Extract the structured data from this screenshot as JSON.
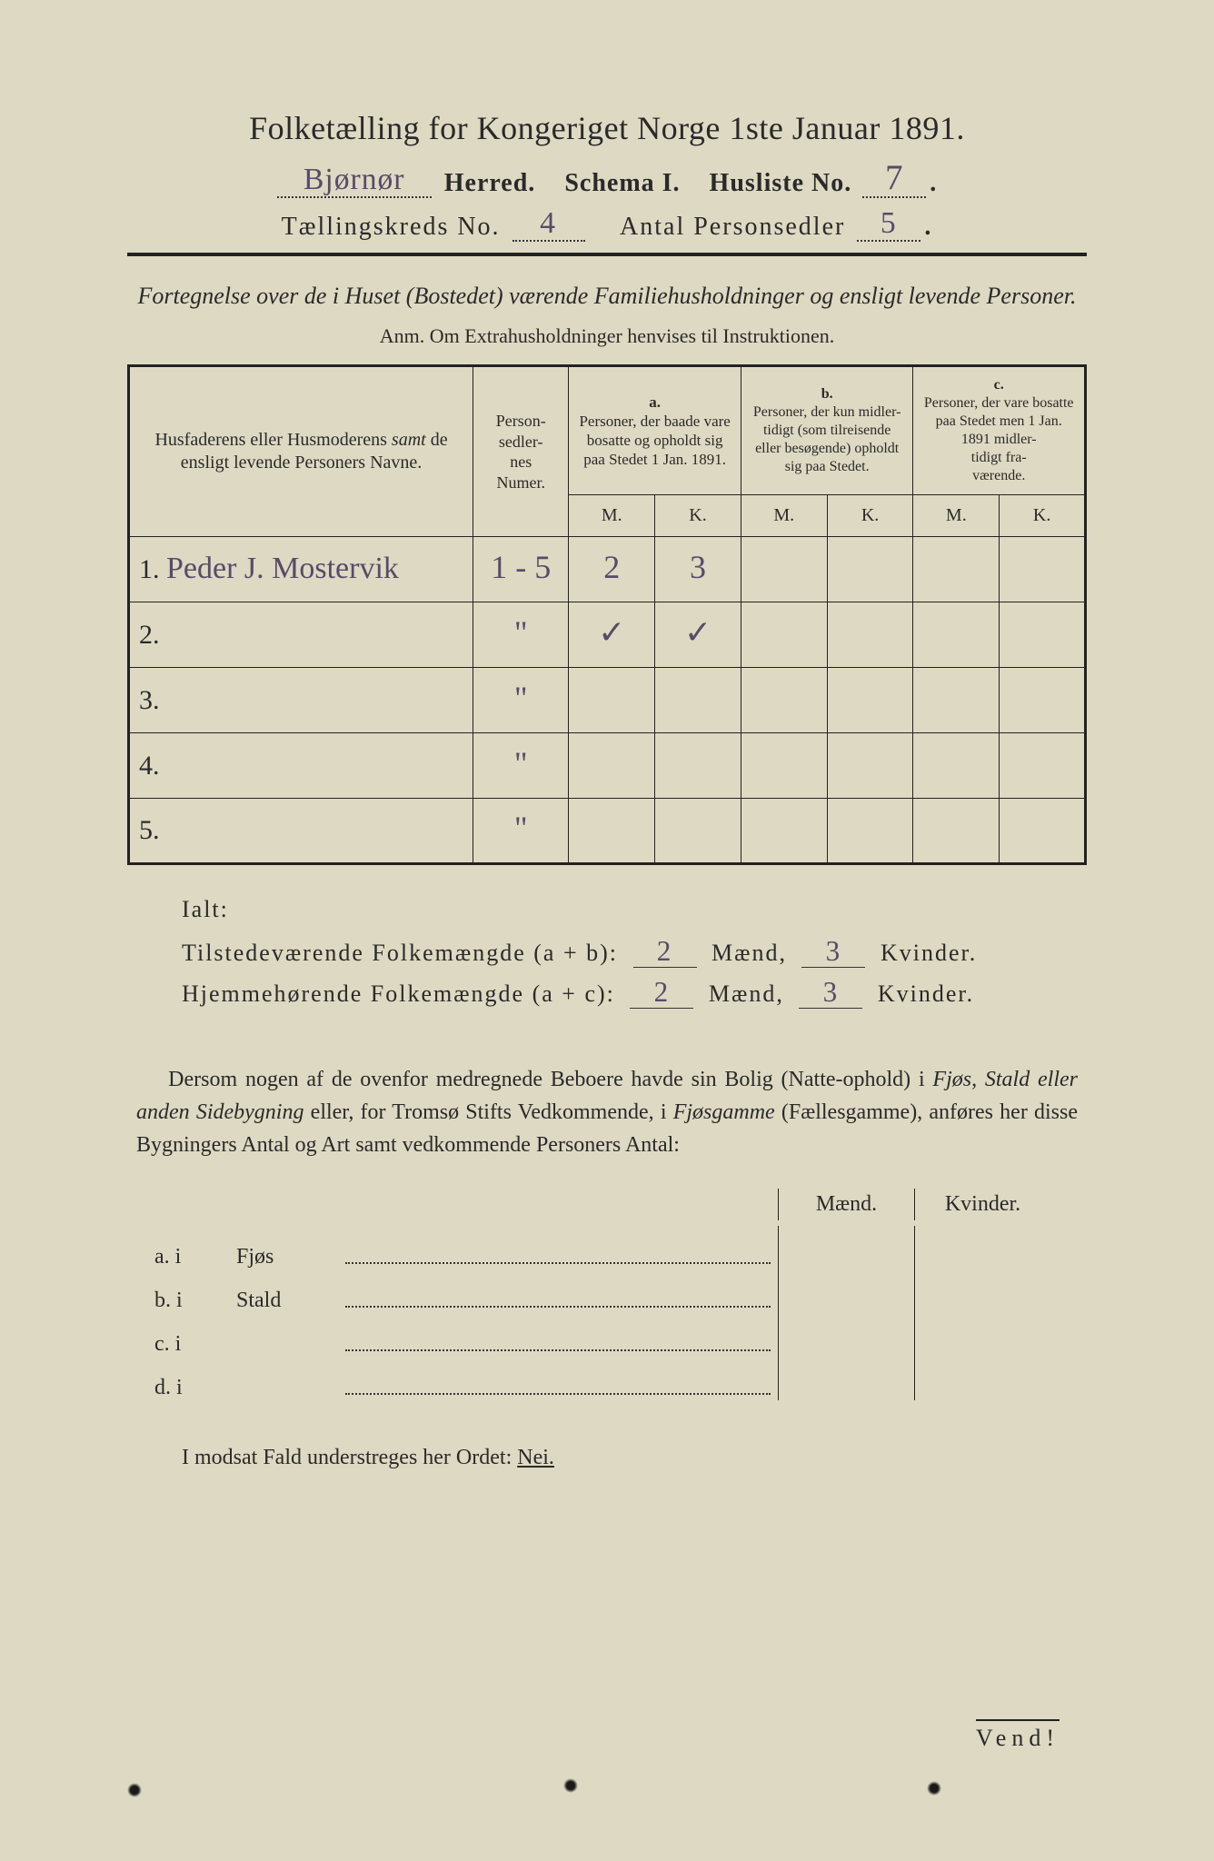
{
  "title": "Folketælling for Kongeriget Norge 1ste Januar 1891.",
  "header": {
    "herred_value": "Bjørnør",
    "herred_label": "Herred.",
    "schema_label": "Schema I.",
    "husliste_label": "Husliste No.",
    "husliste_value": "7",
    "kreds_label": "Tællingskreds No.",
    "kreds_value": "4",
    "antal_label": "Antal Personsedler",
    "antal_value": "5"
  },
  "subheading": "Fortegnelse over de i Huset (Bostedet) værende Familiehusholdninger og ensligt levende Personer.",
  "anm": "Anm. Om Extrahusholdninger henvises til Instruktionen.",
  "table": {
    "col_name": "Husfaderens eller Husmoderens samt de ensligt levende Personers Navne.",
    "col_num": "Person-\nsedler-\nnes\nNumer.",
    "col_a_tag": "a.",
    "col_a": "Personer, der baade vare bosatte og opholdt sig paa Stedet 1 Jan. 1891.",
    "col_b_tag": "b.",
    "col_b": "Personer, der kun midler-\ntidigt (som tilreisende eller besøgende) opholdt sig paa Stedet.",
    "col_c_tag": "c.",
    "col_c": "Personer, der vare bosatte paa Stedet men 1 Jan. 1891 midler-\ntidigt fra-\nværende.",
    "m": "M.",
    "k": "K.",
    "rows": [
      {
        "n": "1.",
        "name": "Peder J. Mostervik",
        "num": "1 - 5",
        "am": "2",
        "ak": "3",
        "bm": "",
        "bk": "",
        "cm": "",
        "ck": ""
      },
      {
        "n": "2.",
        "name": "",
        "num": "\"",
        "am": "✓",
        "ak": "✓",
        "bm": "",
        "bk": "",
        "cm": "",
        "ck": ""
      },
      {
        "n": "3.",
        "name": "",
        "num": "\"",
        "am": "",
        "ak": "",
        "bm": "",
        "bk": "",
        "cm": "",
        "ck": ""
      },
      {
        "n": "4.",
        "name": "",
        "num": "\"",
        "am": "",
        "ak": "",
        "bm": "",
        "bk": "",
        "cm": "",
        "ck": ""
      },
      {
        "n": "5.",
        "name": "",
        "num": "\"",
        "am": "",
        "ak": "",
        "bm": "",
        "bk": "",
        "cm": "",
        "ck": ""
      }
    ]
  },
  "ialt": {
    "title": "Ialt:",
    "line1_label": "Tilstedeværende Folkemængde (a + b):",
    "line1_m": "2",
    "maend": "Mænd,",
    "line1_k": "3",
    "kvinder": "Kvinder.",
    "line2_label": "Hjemmehørende Folkemængde (a + c):",
    "line2_m": "2",
    "line2_k": "3"
  },
  "dersom": "Dersom nogen af de ovenfor medregnede Beboere havde sin Bolig (Natte-ophold) i Fjøs, Stald eller anden Sidebygning eller, for Tromsø Stifts Vedkommende, i Fjøsgamme (Fællesgamme), anføres her disse Bygningers Antal og Art samt vedkommende Personers Antal:",
  "bldg": {
    "maend": "Mænd.",
    "kvinder": "Kvinder.",
    "rows": [
      {
        "l": "a.  i",
        "n": "Fjøs"
      },
      {
        "l": "b.  i",
        "n": "Stald"
      },
      {
        "l": "c.  i",
        "n": ""
      },
      {
        "l": "d.  i",
        "n": ""
      }
    ]
  },
  "modsat_pre": "I modsat Fald understreges her Ordet: ",
  "modsat_nei": "Nei.",
  "vend": "Vend!"
}
